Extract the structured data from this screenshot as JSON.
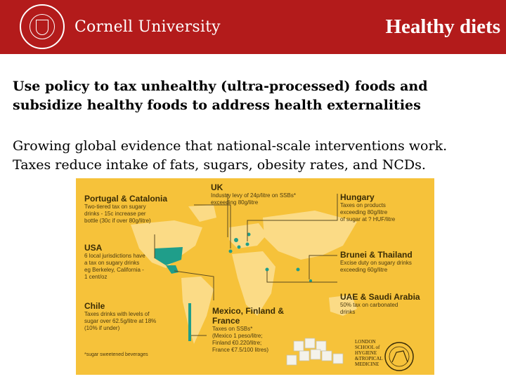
{
  "header": {
    "brand": "Cornell University",
    "title": "Healthy diets"
  },
  "lead": "Use policy to tax unhealthy (ultra-processed) foods and subsidize healthy foods to address health externalities",
  "body": [
    "Growing global evidence that national-scale interventions work.",
    "Taxes reduce intake of fats, sugars, obesity rates, and NCDs."
  ],
  "infographic": {
    "boxes": [
      {
        "key": "portugal",
        "heading": "Portugal & Catalonia",
        "lines": [
          "Two-tiered tax on sugary",
          "drinks - 15c increase per",
          "bottle (30c if over 80g/litre)"
        ]
      },
      {
        "key": "uk",
        "heading": "UK",
        "lines": [
          "Industry levy of 24p/litre on SSBs*",
          "exceeding 80g/litre"
        ]
      },
      {
        "key": "hungary",
        "heading": "Hungary",
        "lines": [
          "Taxes on products",
          "exceeding 80g/litre",
          "of sugar at ? HUF/litre"
        ]
      },
      {
        "key": "usa",
        "heading": "USA",
        "lines": [
          "6 local jurisdictions have",
          "a tax on sugary drinks",
          "eg Berkeley, California -",
          "1 cent/oz"
        ]
      },
      {
        "key": "brunei",
        "heading": "Brunei & Thailand",
        "lines": [
          "Excise duty on sugary drinks",
          "exceeding 60g/litre"
        ]
      },
      {
        "key": "uae",
        "heading": "UAE & Saudi Arabia",
        "lines": [
          "50% tax on carbonated",
          "drinks"
        ]
      },
      {
        "key": "chile",
        "heading": "Chile",
        "lines": [
          "Taxes drinks with levels of",
          "sugar over 62.5g/litre at 18%",
          "(10% if under)"
        ]
      },
      {
        "key": "mexico",
        "heading": "Mexico, Finland & France",
        "lines": [
          "Taxes on SSBs*",
          "(Mexico 1 peso/litre;",
          "Finland €0.220/litre;",
          "France €7.5/100 litres)"
        ]
      }
    ],
    "footnote": "*sugar sweetened beverages",
    "lshtm_lines": [
      "LONDON",
      "SCHOOL of",
      "HYGIENE",
      "&TROPICAL",
      "MEDICINE"
    ],
    "colors": {
      "background": "#f6c23a",
      "land": "#fbdb86",
      "highlight": "#1f9e8a",
      "line": "#5a4a20"
    }
  }
}
